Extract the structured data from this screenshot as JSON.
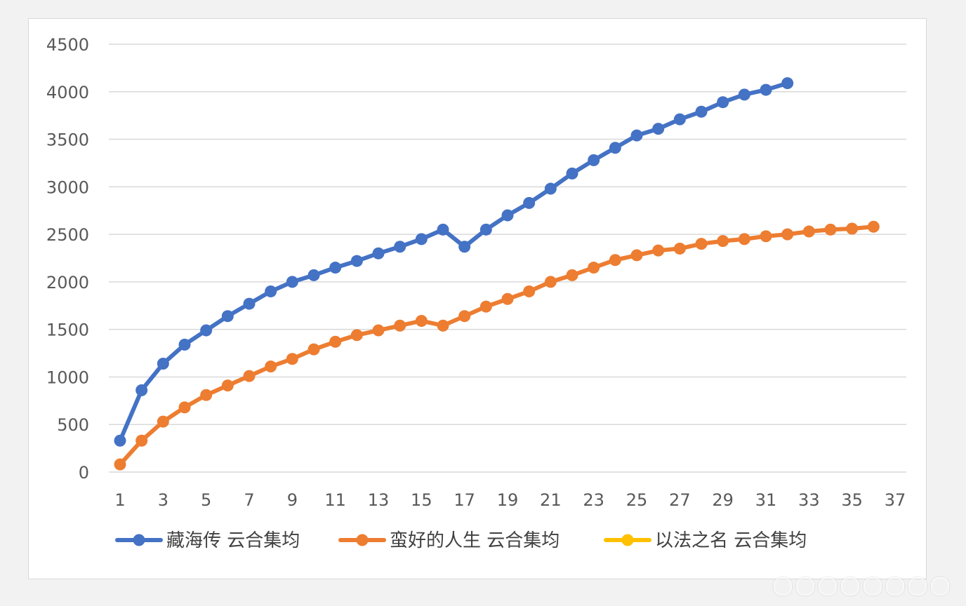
{
  "chart_data": {
    "type": "line",
    "title": "",
    "xlabel": "",
    "ylabel": "",
    "ylim": [
      0,
      4500
    ],
    "yticks": [
      0,
      500,
      1000,
      1500,
      2000,
      2500,
      3000,
      3500,
      4000,
      4500
    ],
    "xlim": [
      1,
      37
    ],
    "xticks": [
      1,
      3,
      5,
      7,
      9,
      11,
      13,
      15,
      17,
      19,
      21,
      23,
      25,
      27,
      29,
      31,
      33,
      35,
      37
    ],
    "grid": true,
    "legend_position": "bottom",
    "series": [
      {
        "name": "藏海传 云合集均",
        "color": "#4472c4",
        "x": [
          1,
          2,
          3,
          4,
          5,
          6,
          7,
          8,
          9,
          10,
          11,
          12,
          13,
          14,
          15,
          16,
          17,
          18,
          19,
          20,
          21,
          22,
          23,
          24,
          25,
          26,
          27,
          28,
          29,
          30,
          31,
          32
        ],
        "values": [
          330,
          860,
          1140,
          1340,
          1490,
          1640,
          1770,
          1900,
          2000,
          2070,
          2150,
          2220,
          2300,
          2370,
          2450,
          2550,
          2370,
          2550,
          2700,
          2830,
          2980,
          3140,
          3280,
          3410,
          3540,
          3610,
          3710,
          3790,
          3890,
          3970,
          4020,
          4090
        ]
      },
      {
        "name": "蛮好的人生 云合集均",
        "color": "#ed7d31",
        "x": [
          1,
          2,
          3,
          4,
          5,
          6,
          7,
          8,
          9,
          10,
          11,
          12,
          13,
          14,
          15,
          16,
          17,
          18,
          19,
          20,
          21,
          22,
          23,
          24,
          25,
          26,
          27,
          28,
          29,
          30,
          31,
          32,
          33,
          34,
          35,
          36
        ],
        "values": [
          80,
          330,
          530,
          680,
          810,
          910,
          1010,
          1110,
          1190,
          1290,
          1370,
          1440,
          1490,
          1540,
          1590,
          1540,
          1640,
          1740,
          1820,
          1900,
          2000,
          2070,
          2150,
          2230,
          2280,
          2330,
          2350,
          2400,
          2430,
          2450,
          2480,
          2500,
          2530,
          2550,
          2560,
          2580
        ]
      },
      {
        "name": "以法之名 云合集均",
        "color": "#ffc000",
        "x": [],
        "values": []
      }
    ]
  }
}
